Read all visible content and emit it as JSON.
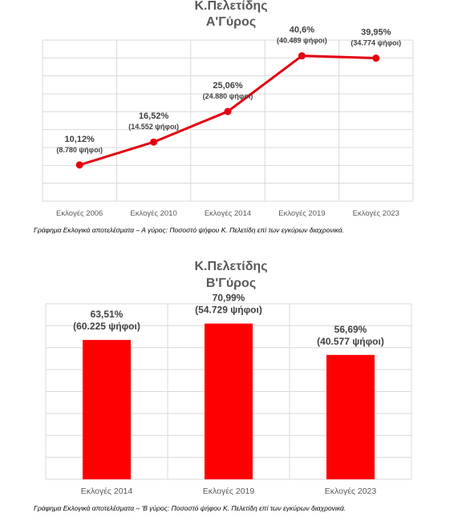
{
  "chart_data": [
    {
      "type": "line",
      "title": "Κ.Πελετίδης",
      "subtitle": "Α'Γύρος",
      "categories": [
        "Εκλογές 2006",
        "Εκλογές 2010",
        "Εκλογές 2014",
        "Εκλογές 2019",
        "Εκλογές 2023"
      ],
      "values": [
        10.12,
        16.52,
        25.06,
        40.6,
        39.95
      ],
      "labels": [
        "10,12%",
        "16,52%",
        "25,06%",
        "40,6%",
        "39,95%"
      ],
      "votes": [
        "(8.780 ψήφοι)",
        "(14.552 ψήφοι)",
        "(24.880 ψήφοι)",
        "(40.489 ψήφοι)",
        "(34.774 ψήφοι)"
      ],
      "ylim": [
        0,
        45
      ],
      "grid": true,
      "color": "#e3000f",
      "caption": "Γράφημα Εκλογικά αποτελέσματα – Α γύρος: Ποσοστό ψήφου Κ. Πελετίδη επί των εγκύρων διαχρονικά."
    },
    {
      "type": "bar",
      "title": "Κ.Πελετίδης",
      "subtitle": "Β'Γύρος",
      "categories": [
        "Εκλογές 2014",
        "Εκλογές 2019",
        "Εκλογές 2023"
      ],
      "values": [
        63.51,
        70.99,
        56.69
      ],
      "labels": [
        "63,51%",
        "70,99%",
        "56,69%"
      ],
      "votes": [
        "(60.225 ψήφοι)",
        "(54.729 ψήφοι)",
        "(40.577 ψήφοι)"
      ],
      "ylim": [
        0,
        80
      ],
      "grid": true,
      "color": "#ff0000",
      "caption": "Γράφημα Εκλογικά αποτελέσματα – 'Β γύρος: Ποσοστό ψήφου Κ. Πελετίδη επί των εγκύρων διαχρονικά."
    }
  ]
}
